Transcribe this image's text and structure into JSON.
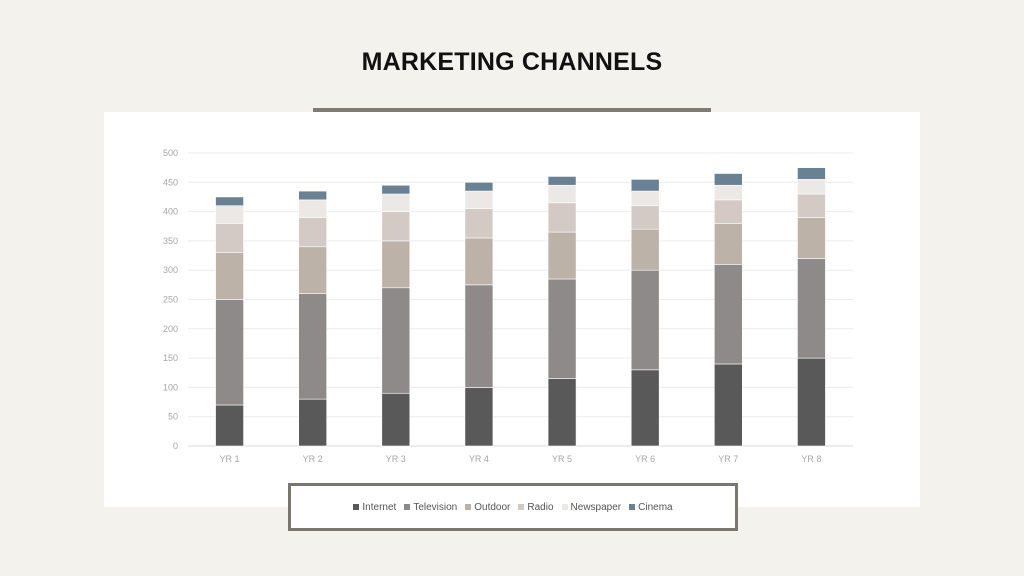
{
  "page": {
    "title": "MARKETING CHANNELS"
  },
  "chart_data": {
    "type": "bar",
    "stacked": true,
    "title": "MARKETING CHANNELS",
    "xlabel": "",
    "ylabel": "",
    "ylim": [
      0,
      500
    ],
    "yticks": [
      0,
      50,
      100,
      150,
      200,
      250,
      300,
      350,
      400,
      450,
      500
    ],
    "grid": true,
    "legend_position": "bottom",
    "categories": [
      "YR 1",
      "YR 2",
      "YR 3",
      "YR 4",
      "YR 5",
      "YR 6",
      "YR 7",
      "YR 8"
    ],
    "series": [
      {
        "name": "Internet",
        "color": "#595959",
        "values": [
          70,
          80,
          90,
          100,
          115,
          130,
          140,
          150
        ]
      },
      {
        "name": "Television",
        "color": "#8e8a89",
        "values": [
          180,
          180,
          180,
          175,
          170,
          170,
          170,
          170
        ]
      },
      {
        "name": "Outdoor",
        "color": "#bcb2a8",
        "values": [
          80,
          80,
          80,
          80,
          80,
          70,
          70,
          70
        ]
      },
      {
        "name": "Radio",
        "color": "#d3cac6",
        "values": [
          50,
          50,
          50,
          50,
          50,
          40,
          40,
          40
        ]
      },
      {
        "name": "Newspaper",
        "color": "#ece8e5",
        "values": [
          30,
          30,
          30,
          30,
          30,
          25,
          25,
          25
        ]
      },
      {
        "name": "Cinema",
        "color": "#6a8193",
        "values": [
          15,
          15,
          15,
          15,
          15,
          20,
          20,
          20
        ]
      }
    ]
  }
}
